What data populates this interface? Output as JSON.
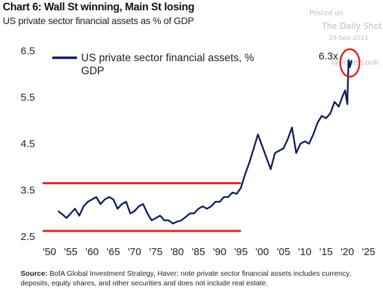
{
  "title": "Chart 6: Wall St winning, Main St losing",
  "subtitle": "US private sector financial assets as % of GDP",
  "watermark": {
    "posted": "Posted on",
    "brand": "The Daily Shot",
    "date": "29-Sep-2021",
    "handle": "@SoberLook"
  },
  "source": {
    "label": "Source:",
    "text": " BofA Global Investment Strategy, Haver; note private sector financial assets includes currency, deposits, equity shares, and other securities and does not include real estate."
  },
  "chart_data": {
    "type": "line",
    "title": "Chart 6: Wall St winning, Main St losing",
    "xlabel": "",
    "ylabel": "",
    "xlim": [
      1950,
      2025
    ],
    "ylim": [
      2.5,
      6.5
    ],
    "yticks": [
      "2.5",
      "3.5",
      "4.5",
      "5.5",
      "6.5"
    ],
    "xticks": [
      "'50",
      "'55",
      "'60",
      "'65",
      "'70",
      "'75",
      "'80",
      "'85",
      "'90",
      "'95",
      "'00",
      "'05",
      "'10",
      "'15",
      "'20",
      "'25"
    ],
    "grid": false,
    "legend_position": "top-left",
    "series": [
      {
        "name": "US private sector financial assets, % GDP",
        "color": "#0b1a5a",
        "x": [
          1952,
          1953,
          1954,
          1955,
          1956,
          1957,
          1958,
          1959,
          1960,
          1961,
          1962,
          1963,
          1964,
          1965,
          1966,
          1967,
          1968,
          1969,
          1970,
          1971,
          1972,
          1973,
          1974,
          1975,
          1976,
          1977,
          1978,
          1979,
          1980,
          1981,
          1982,
          1983,
          1984,
          1985,
          1986,
          1987,
          1988,
          1989,
          1990,
          1991,
          1992,
          1993,
          1994,
          1995,
          1996,
          1997,
          1998,
          1999,
          2000,
          2001,
          2002,
          2003,
          2004,
          2005,
          2006,
          2007,
          2008,
          2009,
          2010,
          2011,
          2012,
          2013,
          2014,
          2015,
          2016,
          2017,
          2018,
          2019,
          2019.5,
          2020,
          2020.3,
          2020.6,
          2021
        ],
        "values": [
          3.05,
          2.98,
          2.9,
          3.0,
          3.1,
          2.95,
          3.15,
          3.25,
          3.3,
          3.35,
          3.2,
          3.3,
          3.35,
          3.3,
          3.1,
          3.2,
          3.25,
          3.0,
          3.05,
          3.15,
          3.2,
          3.0,
          2.85,
          2.9,
          2.95,
          2.85,
          2.85,
          2.78,
          2.82,
          2.85,
          2.92,
          3.0,
          3.0,
          3.1,
          3.15,
          3.1,
          3.15,
          3.25,
          3.25,
          3.35,
          3.35,
          3.45,
          3.42,
          3.55,
          3.85,
          4.1,
          4.4,
          4.7,
          4.45,
          4.2,
          3.95,
          4.3,
          4.35,
          4.4,
          4.6,
          4.85,
          4.3,
          4.5,
          4.55,
          4.5,
          4.7,
          4.95,
          5.1,
          5.05,
          5.15,
          5.4,
          5.3,
          5.55,
          5.65,
          5.35,
          6.3,
          6.15,
          6.3
        ]
      }
    ],
    "reference_lines": [
      {
        "y": 3.65,
        "x_from": 1950,
        "x_to": 1995,
        "color": "#e0201c"
      },
      {
        "y": 2.62,
        "x_from": 1950,
        "x_to": 1995,
        "color": "#e0201c"
      }
    ],
    "annotations": [
      {
        "text": "6.3x",
        "x": 2020.6,
        "y": 6.3,
        "circle_color": "#e0201c"
      }
    ]
  }
}
